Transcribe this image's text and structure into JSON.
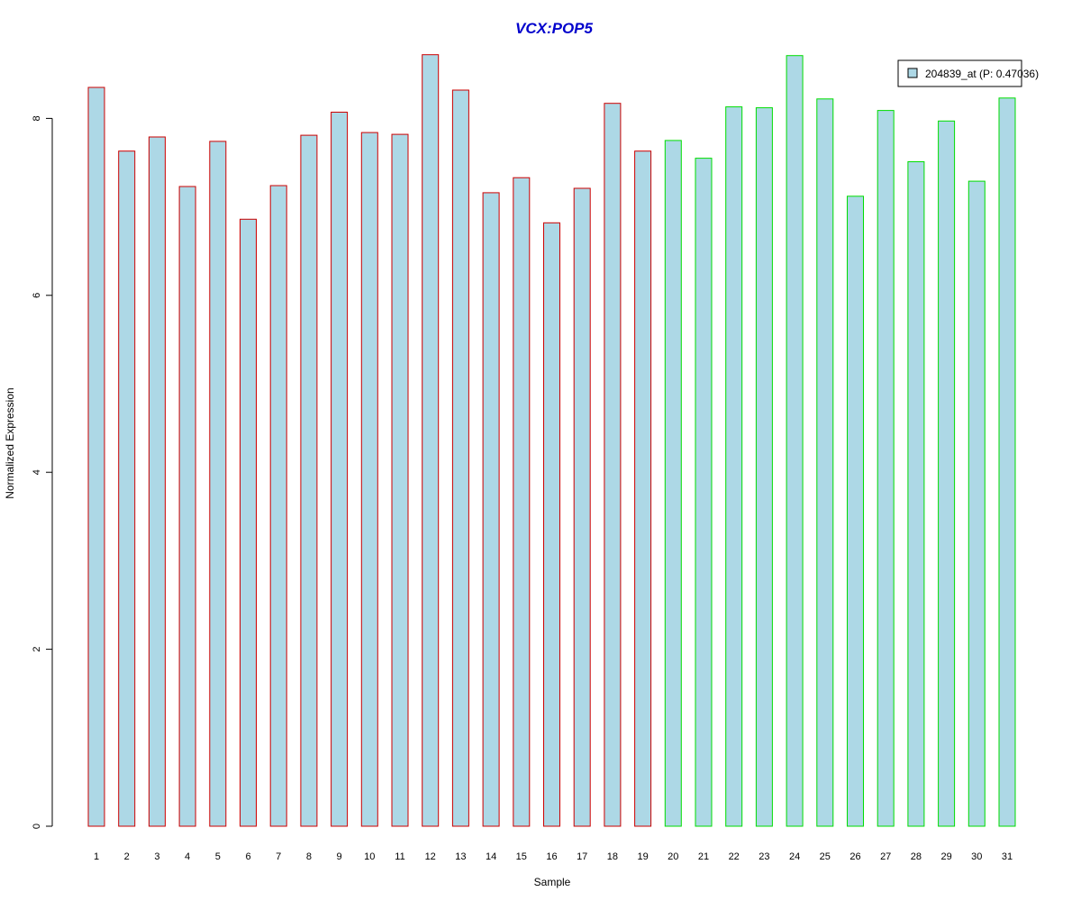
{
  "chart_data": {
    "type": "bar",
    "title": "VCX:POP5",
    "xlabel": "Sample",
    "ylabel": "Normalized Expression",
    "categories": [
      "1",
      "2",
      "3",
      "4",
      "5",
      "6",
      "7",
      "8",
      "9",
      "10",
      "11",
      "12",
      "13",
      "14",
      "15",
      "16",
      "17",
      "18",
      "19",
      "20",
      "21",
      "22",
      "23",
      "24",
      "25",
      "26",
      "27",
      "28",
      "29",
      "30",
      "31"
    ],
    "series": [
      {
        "name": "204839_at (P: 0.47036)",
        "values": [
          8.35,
          7.63,
          7.79,
          7.23,
          7.74,
          6.86,
          7.24,
          7.81,
          8.07,
          7.84,
          7.82,
          8.72,
          8.32,
          7.16,
          7.33,
          6.82,
          7.21,
          8.17,
          7.63,
          7.75,
          7.55,
          8.13,
          8.12,
          8.71,
          8.22,
          7.12,
          8.09,
          7.51,
          7.97,
          7.29,
          8.23
        ]
      }
    ],
    "groups": [
      {
        "range": [
          1,
          19
        ],
        "border_color": "#cc0000"
      },
      {
        "range": [
          20,
          31
        ],
        "border_color": "#00dd00"
      }
    ],
    "ylim": [
      0,
      9
    ],
    "yticks": [
      0,
      2,
      4,
      6,
      8
    ],
    "grid": false,
    "legend_position": "top-right",
    "colors": {
      "bar_fill": "#add8e6",
      "title": "#0000cc",
      "axis": "#000000"
    }
  }
}
